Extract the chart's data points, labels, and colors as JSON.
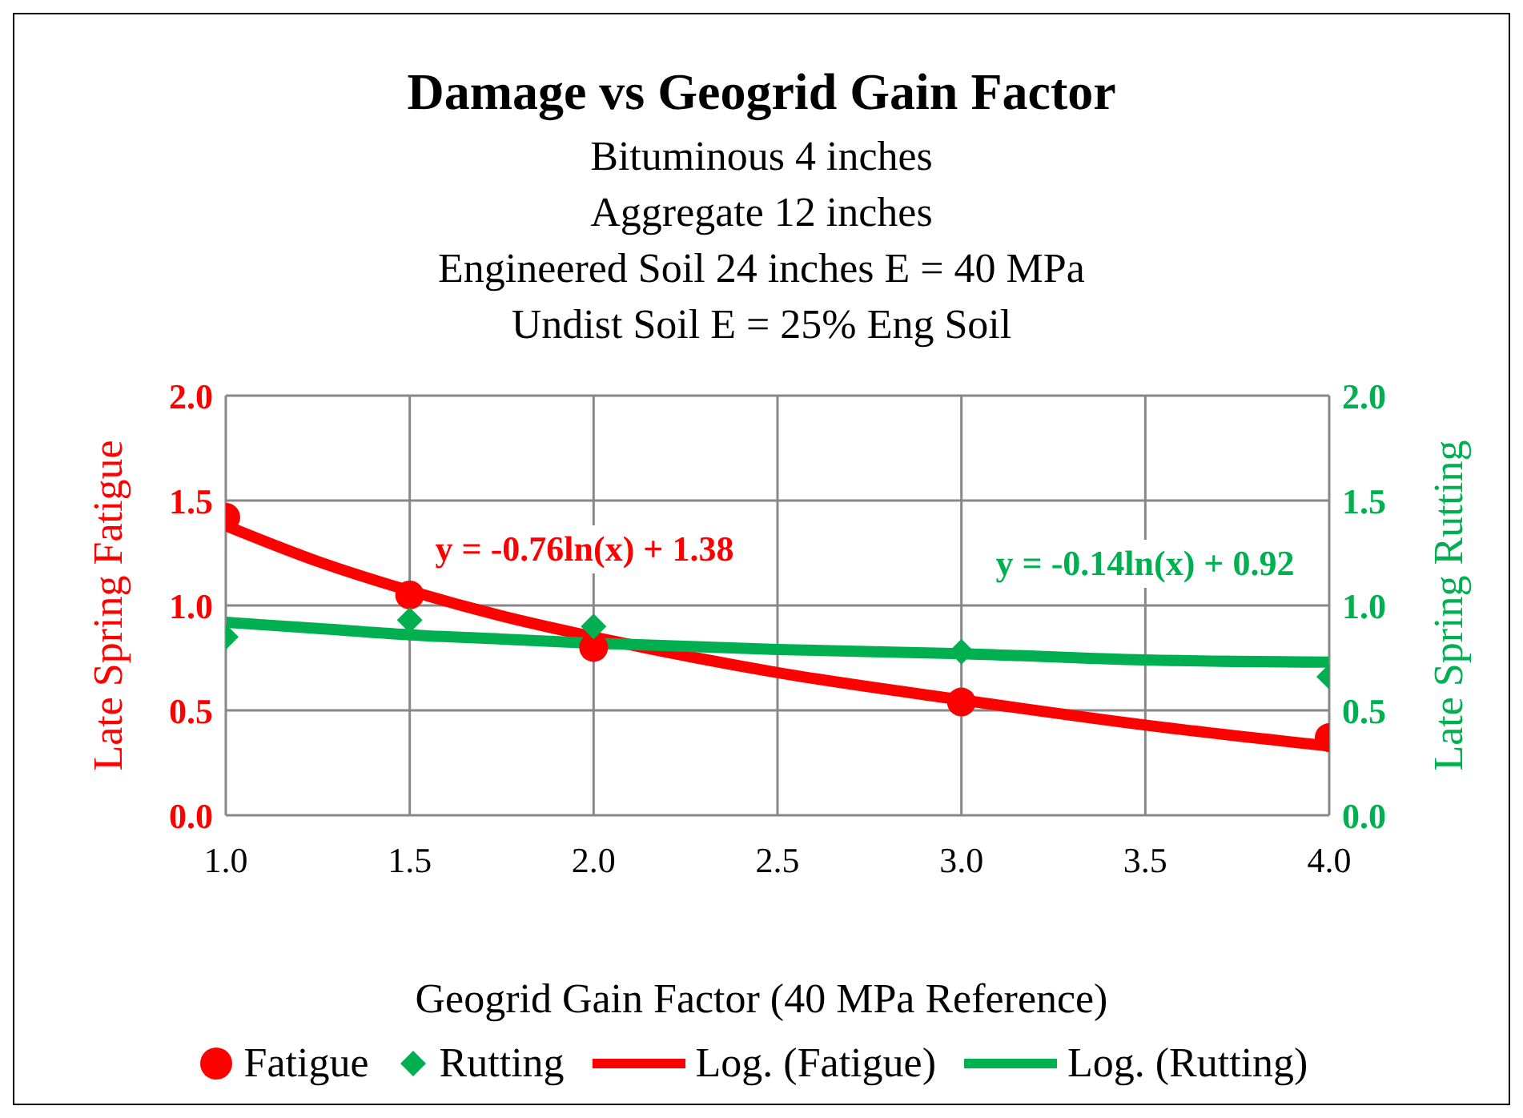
{
  "chart_data": {
    "type": "scatter",
    "title": "Damage vs Geogrid Gain Factor",
    "subtitle": "Bituminous 4 inches\nAggregate 12 inches\nEngineered Soil 24 inches E = 40 MPa\nUndist Soil E = 25% Eng Soil",
    "xlabel": "Geogrid Gain Factor (40 MPa Reference)",
    "ylabel": "Late Spring Fatigue",
    "y2label": "Late Spring Rutting",
    "x": [
      1.0,
      1.5,
      2.0,
      3.0,
      4.0
    ],
    "series": [
      {
        "name": "Fatigue",
        "marker": "circle",
        "color": "#ff0000",
        "values": [
          1.42,
          1.05,
          0.8,
          0.54,
          0.37
        ]
      },
      {
        "name": "Rutting",
        "marker": "diamond",
        "axis": "y2",
        "color": "#00b050",
        "values": [
          0.85,
          0.93,
          0.9,
          0.78,
          0.66
        ]
      },
      {
        "name": "Log. (Fatigue)",
        "type": "line",
        "marker": "none",
        "color": "#ff0000",
        "x": [
          1.0,
          1.25,
          1.5,
          1.75,
          2.0,
          2.5,
          3.0,
          3.5,
          4.0
        ],
        "values": [
          1.38,
          1.21,
          1.07,
          0.95,
          0.85,
          0.68,
          0.55,
          0.43,
          0.33
        ]
      },
      {
        "name": "Log. (Rutting)",
        "type": "line",
        "marker": "none",
        "axis": "y2",
        "color": "#00b050",
        "x": [
          1.0,
          1.25,
          1.5,
          1.75,
          2.0,
          2.5,
          3.0,
          3.5,
          4.0
        ],
        "values": [
          0.92,
          0.89,
          0.86,
          0.84,
          0.82,
          0.79,
          0.77,
          0.74,
          0.73
        ]
      }
    ],
    "annotations": [
      "y = -0.76ln(x) + 1.38",
      "y = -0.14ln(x) + 0.92"
    ],
    "xlim": [
      1.0,
      4.0
    ],
    "xticks": [
      {
        "value": 1,
        "label": "1.0"
      },
      {
        "value": 1.5,
        "label": "1.5"
      },
      {
        "value": 2,
        "label": "2.0"
      },
      {
        "value": 2.5,
        "label": "2.5"
      },
      {
        "value": 3,
        "label": "3.0"
      },
      {
        "value": 3.5,
        "label": "3.5"
      },
      {
        "value": 4,
        "label": "4.0"
      }
    ],
    "ylim": [
      0,
      2
    ],
    "yticks": [
      {
        "value": 0,
        "label": "0.0"
      },
      {
        "value": 0.5,
        "label": "0.5"
      },
      {
        "value": 1,
        "label": "1.0"
      },
      {
        "value": 1.5,
        "label": "1.5"
      },
      {
        "value": 2,
        "label": "2.0"
      }
    ],
    "y2lim": [
      0,
      2
    ],
    "y2ticks": [
      {
        "value": 0,
        "label": "0.0"
      },
      {
        "value": 0.5,
        "label": "0.5"
      },
      {
        "value": 1,
        "label": "1.0"
      },
      {
        "value": 1.5,
        "label": "1.5"
      },
      {
        "value": 2,
        "label": "2.0"
      }
    ],
    "grid": true,
    "legend": "bottom"
  }
}
